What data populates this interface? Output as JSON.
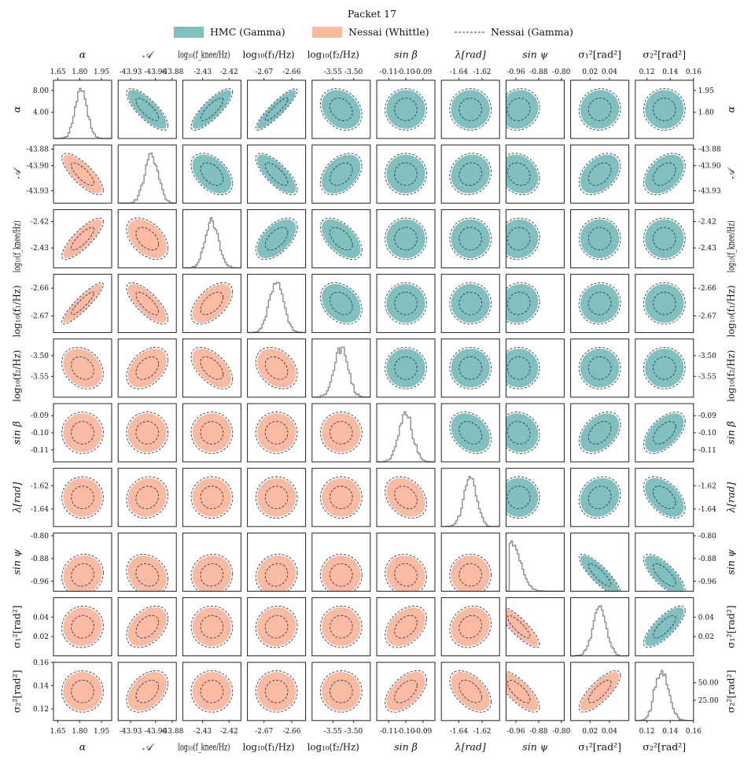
{
  "chart_data": {
    "type": "corner",
    "title": "Packet 17",
    "legend": {
      "placement": "top-center",
      "entries": [
        {
          "label": "HMC (Gamma)",
          "style": "filled",
          "color": "#80bfbf"
        },
        {
          "label": "Nessai (Whittle)",
          "style": "filled",
          "color": "#fbb9a0"
        },
        {
          "label": "Nessai (Gamma)",
          "style": "dashed-line",
          "color": "#2b3a55"
        }
      ]
    },
    "colors": {
      "hmc": "#80bfbf",
      "nessai_whittle": "#fbb9a0",
      "nessai_gamma": "#2b3a55",
      "histogram": "#8d8d8d"
    },
    "parameters": [
      {
        "key": "alpha",
        "label": "α",
        "range": [
          1.62,
          2.02
        ],
        "ticks": [
          {
            "v": 1.65,
            "t": "1.65"
          },
          {
            "v": 1.8,
            "t": "1.80"
          },
          {
            "v": 1.95,
            "t": "1.95"
          }
        ],
        "mean": 1.81,
        "sd": 0.04,
        "side_ticks": [
          {
            "v": 1.8,
            "t": "1.80"
          },
          {
            "v": 1.95,
            "t": "1.95"
          }
        ],
        "left_ticks": [
          {
            "v": 1.8,
            "t": "4.00"
          },
          {
            "v": 1.95,
            "t": "8.00"
          }
        ]
      },
      {
        "key": "A",
        "label": "𝒜",
        "range": [
          -43.945,
          -43.875
        ],
        "ticks": [
          {
            "v": -43.93,
            "t": "-43.93"
          },
          {
            "v": -43.9,
            "t": "-43.90"
          },
          {
            "v": -43.88,
            "t": "-43.88"
          }
        ],
        "mean": -43.905,
        "sd": 0.008
      },
      {
        "key": "log_fknee",
        "label": "log₁₀(f_knee/Hz)",
        "range": [
          -2.4375,
          -2.4155
        ],
        "ticks": [
          {
            "v": -2.43,
            "t": "-2.43"
          },
          {
            "v": -2.42,
            "t": "-2.42"
          }
        ],
        "mean": -2.4265,
        "sd": 0.0025
      },
      {
        "key": "log_f1",
        "label": "log₁₀(f₁/Hz)",
        "range": [
          -2.676,
          -2.655
        ],
        "ticks": [
          {
            "v": -2.67,
            "t": "-2.67"
          },
          {
            "v": -2.66,
            "t": "-2.66"
          }
        ],
        "mean": -2.6655,
        "sd": 0.0025
      },
      {
        "key": "log_f2",
        "label": "log₁₀(f₂/Hz)",
        "range": [
          -3.6,
          -3.46
        ],
        "ticks": [
          {
            "v": -3.55,
            "t": "-3.55"
          },
          {
            "v": -3.5,
            "t": "-3.50"
          }
        ],
        "mean": -3.53,
        "sd": 0.016
      },
      {
        "key": "sin_beta",
        "label": "sin β",
        "range": [
          -0.117,
          -0.083
        ],
        "ticks": [
          {
            "v": -0.11,
            "t": "-0.11"
          },
          {
            "v": -0.1,
            "t": "-0.10"
          },
          {
            "v": -0.09,
            "t": "-0.09"
          }
        ],
        "mean": -0.1,
        "sd": 0.004
      },
      {
        "key": "lambda",
        "label": "λ[rad]",
        "range": [
          -1.655,
          -1.605
        ],
        "ticks": [
          {
            "v": -1.64,
            "t": "-1.64"
          },
          {
            "v": -1.62,
            "t": "-1.62"
          }
        ],
        "mean": -1.63,
        "sd": 0.0055
      },
      {
        "key": "sin_psi",
        "label": "sin ψ",
        "range": [
          -0.995,
          -0.79
        ],
        "ticks": [
          {
            "v": -0.96,
            "t": "-0.96"
          },
          {
            "v": -0.88,
            "t": "-0.88"
          },
          {
            "v": -0.8,
            "t": "-0.80"
          }
        ],
        "mean": -0.955,
        "sd": 0.03
      },
      {
        "key": "sigma1",
        "label": "σ₁²[rad²]",
        "range": [
          0.0,
          0.06
        ],
        "ticks": [
          {
            "v": 0.02,
            "t": "0.02"
          },
          {
            "v": 0.04,
            "t": "0.04"
          }
        ],
        "mean": 0.03,
        "sd": 0.007
      },
      {
        "key": "sigma2",
        "label": "σ₂²[rad²]",
        "range": [
          0.11,
          0.16
        ],
        "ticks": [
          {
            "v": 0.12,
            "t": "0.12"
          },
          {
            "v": 0.14,
            "t": "0.14"
          },
          {
            "v": 0.16,
            "t": "0.16"
          }
        ],
        "mean": 0.133,
        "sd": 0.006,
        "side_ticks": [
          {
            "v": 0.1275,
            "t": "25.00"
          },
          {
            "v": 0.1425,
            "t": "50.00"
          }
        ]
      }
    ],
    "correlations": [
      [
        "alpha",
        "A",
        -0.78
      ],
      [
        "alpha",
        "log_fknee",
        0.82
      ],
      [
        "alpha",
        "log_f1",
        0.9
      ],
      [
        "alpha",
        "log_f2",
        -0.25
      ],
      [
        "alpha",
        "sin_beta",
        0.0
      ],
      [
        "alpha",
        "lambda",
        0.0
      ],
      [
        "alpha",
        "sin_psi",
        0.1
      ],
      [
        "alpha",
        "sigma1",
        0.05
      ],
      [
        "alpha",
        "sigma2",
        0.0
      ],
      [
        "A",
        "log_fknee",
        -0.45
      ],
      [
        "A",
        "log_f1",
        -0.75
      ],
      [
        "A",
        "log_f2",
        0.4
      ],
      [
        "A",
        "sin_beta",
        0.0
      ],
      [
        "A",
        "lambda",
        0.1
      ],
      [
        "A",
        "sin_psi",
        -0.2
      ],
      [
        "A",
        "sigma1",
        0.4
      ],
      [
        "A",
        "sigma2",
        0.4
      ],
      [
        "log_fknee",
        "log_f1",
        0.55
      ],
      [
        "log_fknee",
        "log_f2",
        -0.55
      ],
      [
        "log_fknee",
        "sin_beta",
        0.0
      ],
      [
        "log_fknee",
        "lambda",
        0.0
      ],
      [
        "log_fknee",
        "sin_psi",
        0.05
      ],
      [
        "log_fknee",
        "sigma1",
        0.0
      ],
      [
        "log_fknee",
        "sigma2",
        0.0
      ],
      [
        "log_f1",
        "log_f2",
        -0.3
      ],
      [
        "log_f1",
        "sin_beta",
        0.0
      ],
      [
        "log_f1",
        "lambda",
        0.0
      ],
      [
        "log_f1",
        "sin_psi",
        0.1
      ],
      [
        "log_f1",
        "sigma1",
        0.05
      ],
      [
        "log_f1",
        "sigma2",
        0.0
      ],
      [
        "log_f2",
        "sin_beta",
        0.0
      ],
      [
        "log_f2",
        "lambda",
        0.0
      ],
      [
        "log_f2",
        "sin_psi",
        0.0
      ],
      [
        "log_f2",
        "sigma1",
        0.0
      ],
      [
        "log_f2",
        "sigma2",
        0.0
      ],
      [
        "sin_beta",
        "lambda",
        -0.3
      ],
      [
        "sin_beta",
        "sin_psi",
        -0.1
      ],
      [
        "sin_beta",
        "sigma1",
        0.4
      ],
      [
        "sin_beta",
        "sigma2",
        0.55
      ],
      [
        "lambda",
        "sin_psi",
        0.0
      ],
      [
        "lambda",
        "sigma1",
        0.15
      ],
      [
        "lambda",
        "sigma2",
        -0.5
      ],
      [
        "sin_psi",
        "sigma1",
        -0.85
      ],
      [
        "sin_psi",
        "sigma2",
        -0.75
      ],
      [
        "sigma1",
        "sigma2",
        0.78
      ]
    ]
  }
}
